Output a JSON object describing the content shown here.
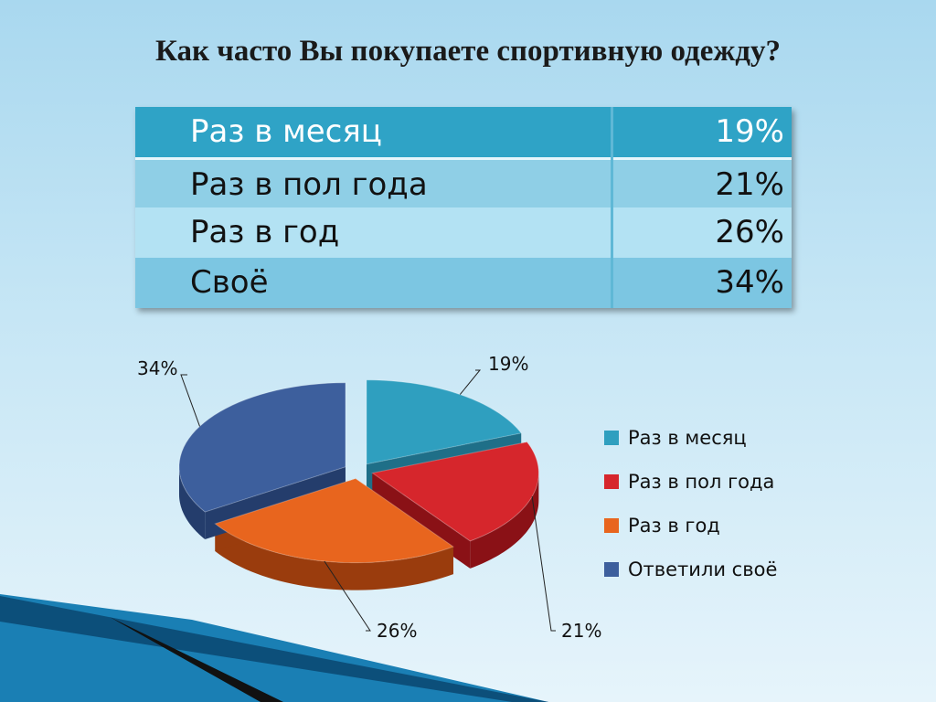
{
  "title": "Как часто Вы покупаете спортивную одежду?",
  "table": {
    "rows": [
      {
        "label": "Раз в месяц",
        "value": "19%"
      },
      {
        "label": "Раз в пол года",
        "value": "21%"
      },
      {
        "label": "Раз в год",
        "value": "26%"
      },
      {
        "label": "Своё",
        "value": "34%"
      }
    ]
  },
  "colors": {
    "header_row": "#2fa3c6",
    "row_a": "#8fcfe6",
    "row_b": "#b3e2f3",
    "row_d": "#7cc6e2"
  },
  "chart_data": {
    "type": "pie",
    "categories": [
      "Раз в месяц",
      "Раз в пол года",
      "Раз в год",
      "Ответили своё"
    ],
    "values": [
      19,
      21,
      26,
      34
    ],
    "data_labels": [
      "19%",
      "21%",
      "26%",
      "34%"
    ],
    "colors": [
      "#2f9fbf",
      "#d6262c",
      "#e8651e",
      "#3d5f9d"
    ],
    "side_colors": [
      "#1f6f88",
      "#8a1116",
      "#9a3c0d",
      "#243d6c"
    ],
    "legend_position": "right",
    "style": "3d-exploded"
  }
}
